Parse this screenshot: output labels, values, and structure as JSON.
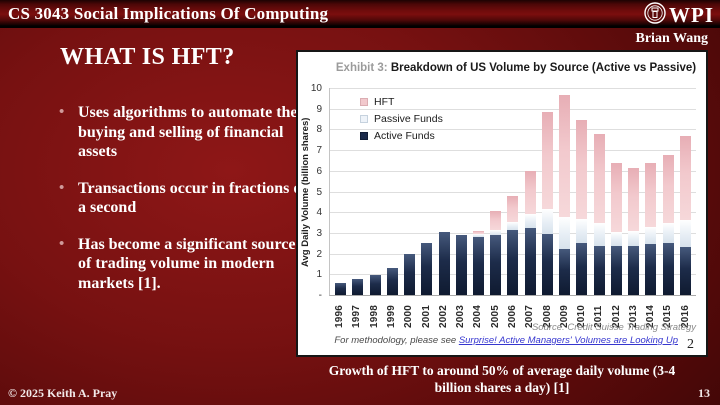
{
  "header": {
    "course_title": "CS 3043 Social Implications Of Computing",
    "logo_text": "WPI"
  },
  "author_name": "Brian Wang",
  "content": {
    "title": "WHAT IS HFT?",
    "bullets": [
      "Uses algorithms to automate the buying and selling of financial assets",
      "Transactions occur in fractions of a second",
      "Has become a significant source of trading volume in modern markets [1]."
    ],
    "caption": "Growth of HFT to around 50% of average daily volume (3-4 billion shares a day) [1]"
  },
  "footer": {
    "copyright": "© 2025 Keith A. Pray",
    "slide_number": "13"
  },
  "colors": {
    "brand_crimson": "#7a0e0e",
    "hft_pink": "#f0c6ca",
    "passive_pale": "#e9eff6",
    "active_navy": "#1a2a4a"
  },
  "chart_data": {
    "type": "bar",
    "stacked": true,
    "title_prefix": "Exhibit 3:",
    "title": "Breakdown of US Volume by Source (Active vs Passive)",
    "ylabel": "Avg Daily Volume (billion shares)",
    "ylim": [
      0,
      10
    ],
    "grid": true,
    "legend_position": "top-left",
    "yticks": [
      10,
      9,
      8,
      7,
      6,
      5,
      4,
      3,
      2,
      1,
      0
    ],
    "ytick_labels": [
      "10",
      "9",
      "8",
      "7",
      "6",
      "5",
      "4",
      "3",
      "2",
      "1",
      "-"
    ],
    "categories": [
      "1996",
      "1997",
      "1998",
      "1999",
      "2000",
      "2001",
      "2002",
      "2003",
      "2004",
      "2005",
      "2006",
      "2007",
      "2008",
      "2009",
      "2010",
      "2011",
      "2012",
      "2013",
      "2014",
      "2015",
      "2016"
    ],
    "series": [
      {
        "name": "Active Funds",
        "color": "#1a2a4a",
        "values": [
          0.6,
          0.75,
          0.95,
          1.3,
          2.0,
          2.5,
          3.05,
          2.9,
          2.8,
          2.9,
          3.15,
          3.25,
          2.95,
          2.2,
          2.5,
          2.35,
          2.35,
          2.35,
          2.45,
          2.5,
          2.3
        ]
      },
      {
        "name": "Passive Funds",
        "color": "#e9eff6",
        "values": [
          0,
          0,
          0,
          0,
          0,
          0,
          0,
          0,
          0.15,
          0.25,
          0.4,
          0.65,
          1.2,
          1.55,
          1.15,
          1.15,
          0.7,
          0.75,
          0.85,
          1.0,
          1.3
        ]
      },
      {
        "name": "HFT",
        "color": "#f0c6ca",
        "values": [
          0,
          0,
          0,
          0,
          0,
          0,
          0,
          0,
          0.15,
          0.9,
          1.25,
          2.1,
          4.7,
          5.9,
          4.8,
          4.3,
          3.35,
          3.05,
          3.1,
          3.25,
          4.1
        ]
      }
    ],
    "legend": [
      "HFT",
      "Passive Funds",
      "Active Funds"
    ],
    "source": "Source: Credit Suisse Trading Strategy",
    "footnote_prefix": "For methodology, please see ",
    "footnote_link_text": "Surprise! Active Managers' Volumes are Looking Up",
    "exhibit_page_number": "2"
  }
}
